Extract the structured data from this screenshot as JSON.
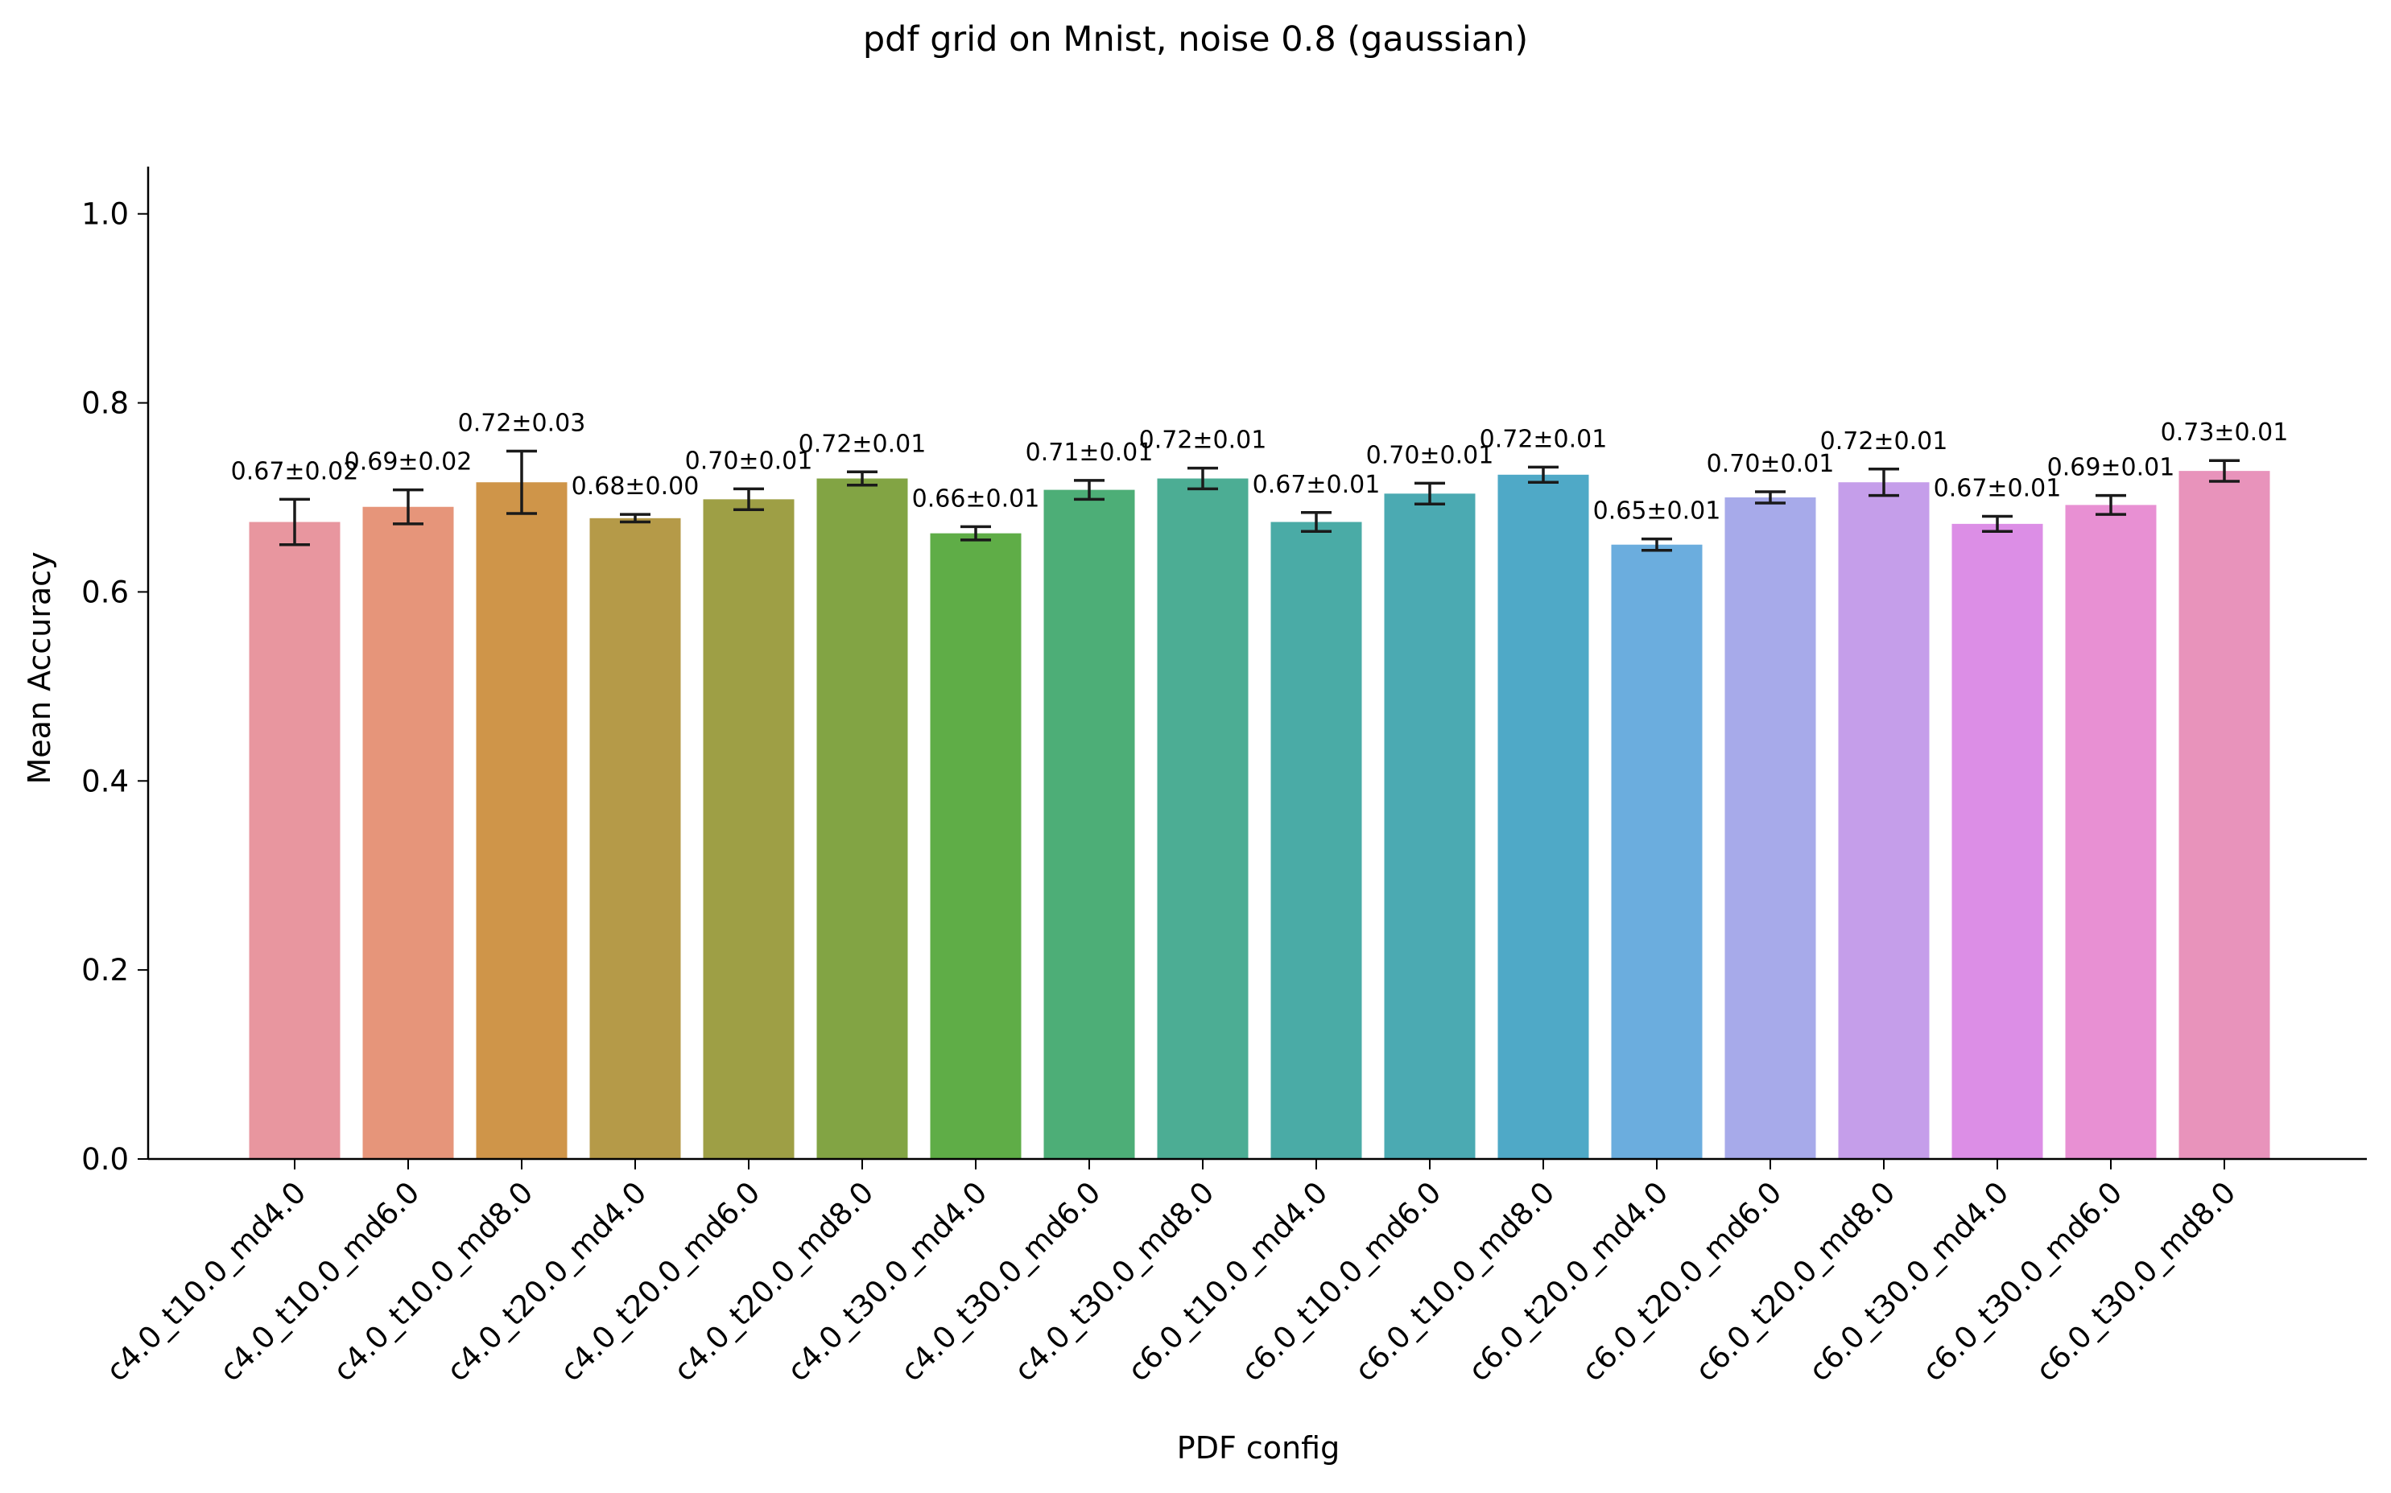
{
  "chart_data": {
    "type": "bar",
    "title": "pdf grid on Mnist, noise 0.8 (gaussian)",
    "xlabel": "PDF config",
    "ylabel": "Mean Accuracy",
    "ylim": [
      0,
      1.05
    ],
    "yticks": [
      0.0,
      0.2,
      0.4,
      0.6,
      0.8,
      1.0
    ],
    "ytick_labels": [
      "0.0",
      "0.2",
      "0.4",
      "0.6",
      "0.8",
      "1.0"
    ],
    "grid": false,
    "categories": [
      "c4.0_t10.0_md4.0",
      "c4.0_t10.0_md6.0",
      "c4.0_t10.0_md8.0",
      "c4.0_t20.0_md4.0",
      "c4.0_t20.0_md6.0",
      "c4.0_t20.0_md8.0",
      "c4.0_t30.0_md4.0",
      "c4.0_t30.0_md6.0",
      "c4.0_t30.0_md8.0",
      "c6.0_t10.0_md4.0",
      "c6.0_t10.0_md6.0",
      "c6.0_t10.0_md8.0",
      "c6.0_t20.0_md4.0",
      "c6.0_t20.0_md6.0",
      "c6.0_t20.0_md8.0",
      "c6.0_t30.0_md4.0",
      "c6.0_t30.0_md6.0",
      "c6.0_t30.0_md8.0"
    ],
    "values": [
      0.674,
      0.69,
      0.716,
      0.678,
      0.698,
      0.72,
      0.662,
      0.708,
      0.72,
      0.674,
      0.704,
      0.724,
      0.65,
      0.7,
      0.716,
      0.672,
      0.692,
      0.728
    ],
    "errors": [
      0.024,
      0.018,
      0.033,
      0.004,
      0.011,
      0.007,
      0.007,
      0.01,
      0.011,
      0.01,
      0.011,
      0.008,
      0.006,
      0.006,
      0.014,
      0.008,
      0.01,
      0.011
    ],
    "data_labels": [
      "0.67±0.02",
      "0.69±0.02",
      "0.72±0.03",
      "0.68±0.00",
      "0.70±0.01",
      "0.72±0.01",
      "0.66±0.01",
      "0.71±0.01",
      "0.72±0.01",
      "0.67±0.01",
      "0.70±0.01",
      "0.72±0.01",
      "0.65±0.01",
      "0.70±0.01",
      "0.72±0.01",
      "0.67±0.01",
      "0.69±0.01",
      "0.73±0.01"
    ],
    "colors": [
      "#e8969f",
      "#e6957a",
      "#cf9549",
      "#b59a48",
      "#9e9f45",
      "#82a444",
      "#5fad47",
      "#4dae77",
      "#4cad94",
      "#4aaba6",
      "#4baab2",
      "#4fa9c7",
      "#6badde",
      "#a7aaea",
      "#c59eea",
      "#dc8ee6",
      "#e890d3",
      "#e893bb"
    ]
  }
}
